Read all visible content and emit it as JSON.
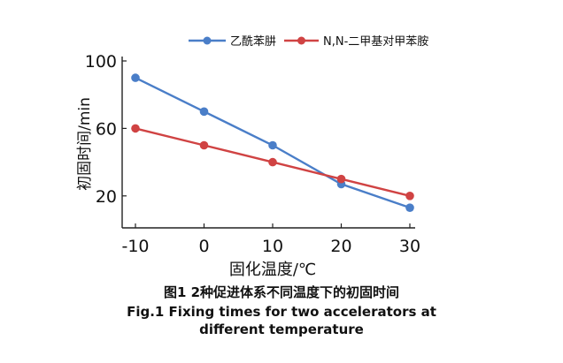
{
  "chart_data": {
    "type": "line",
    "title": "",
    "xlabel": "固化温度/℃",
    "ylabel": "初固时间/min",
    "x": [
      -10,
      0,
      10,
      20,
      30
    ],
    "x_tick_labels": [
      "-10",
      "0",
      "10",
      "20",
      "30"
    ],
    "xlim": [
      -10,
      30
    ],
    "y_tick_values": [
      20,
      60,
      100
    ],
    "y_tick_labels": [
      "20",
      "60",
      "100"
    ],
    "ylim": [
      0,
      100
    ],
    "grid": false,
    "legend_position": "top",
    "series": [
      {
        "name": "乙酰苯肼",
        "color": "#4a7ec8",
        "marker": "circle",
        "values": [
          90,
          70,
          50,
          27,
          13
        ]
      },
      {
        "name": "N,N-二甲基对甲苯胺",
        "color": "#d04343",
        "marker": "circle",
        "values": [
          60,
          50,
          40,
          30,
          20
        ]
      }
    ]
  },
  "caption": {
    "cn": "图1  2种促进体系不同温度下的初固时间",
    "en_line1": "Fig.1   Fixing times for two accelerators at",
    "en_line2": "different temperature"
  }
}
